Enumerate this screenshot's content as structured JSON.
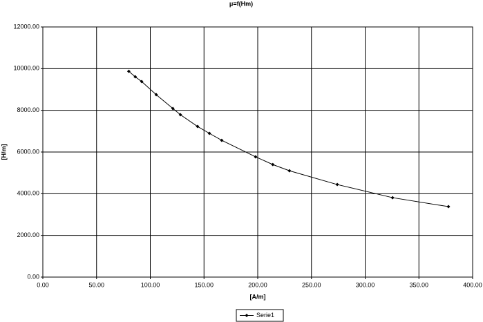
{
  "chart_data": {
    "type": "line",
    "title": "μ=f(Hm)",
    "x_label": "[A/m]",
    "y_label": "[H/m]",
    "x": [
      80,
      86,
      92,
      105.5,
      121,
      128,
      144,
      155,
      166.5,
      198,
      214,
      229.5,
      274,
      325.5,
      377.5
    ],
    "series": [
      {
        "name": "Serie1",
        "color": "#000000",
        "values": [
          9870,
          9610,
          9380,
          8750,
          8090,
          7790,
          7225,
          6895,
          6560,
          5770,
          5400,
          5100,
          4440,
          3810,
          3380
        ]
      }
    ],
    "xlim": [
      0,
      400
    ],
    "xticks": [
      {
        "value": 0,
        "label": "0.00"
      },
      {
        "value": 50,
        "label": "50.00"
      },
      {
        "value": 100,
        "label": "100.00"
      },
      {
        "value": 150,
        "label": "150.00"
      },
      {
        "value": 200,
        "label": "200.00"
      },
      {
        "value": 250,
        "label": "250.00"
      },
      {
        "value": 300,
        "label": "300.00"
      },
      {
        "value": 350,
        "label": "350.00"
      },
      {
        "value": 400,
        "label": "400.00"
      }
    ],
    "ylim": [
      0,
      12000
    ],
    "yticks": [
      {
        "value": 0,
        "label": "0.00"
      },
      {
        "value": 2000,
        "label": "2000.00"
      },
      {
        "value": 4000,
        "label": "4000.00"
      },
      {
        "value": 6000,
        "label": "6000.00"
      },
      {
        "value": 8000,
        "label": "8000.00"
      },
      {
        "value": 10000,
        "label": "10000.00"
      },
      {
        "value": 12000,
        "label": "12000.00"
      }
    ],
    "grid": true,
    "legend": "bottom"
  }
}
